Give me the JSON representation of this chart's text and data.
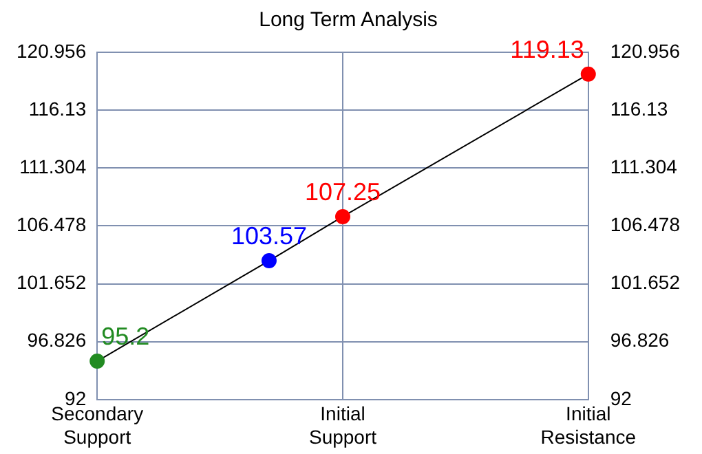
{
  "chart_data": {
    "type": "line",
    "title": "Long Term Analysis",
    "categories": [
      "Secondary Support",
      null,
      null,
      null,
      null,
      null,
      null,
      null,
      null,
      null,
      "Initial Support",
      null,
      null,
      null,
      null,
      null,
      null,
      null,
      null,
      null,
      "Initial Resistance"
    ],
    "ylim": [
      92,
      120.956
    ],
    "yticks": [
      92,
      96.826,
      101.652,
      106.478,
      111.304,
      116.13,
      120.956
    ],
    "y2lim": [
      92,
      120.956
    ],
    "y2ticks": [
      92,
      96.826,
      101.652,
      106.478,
      111.304,
      116.13,
      120.956
    ],
    "series": [
      {
        "color": "#000000",
        "colors": [
          "#228b22",
          null,
          null,
          null,
          null,
          null,
          null,
          "#0000ff",
          null,
          null,
          "#ff0000",
          null,
          null,
          null,
          null,
          null,
          null,
          null,
          null,
          null,
          "#ff0000"
        ],
        "values": [
          95.2,
          null,
          null,
          null,
          null,
          null,
          null,
          103.57,
          null,
          null,
          107.25,
          null,
          null,
          null,
          null,
          null,
          null,
          null,
          null,
          null,
          119.13
        ]
      }
    ],
    "marker": "circle",
    "line_style": "solid",
    "grid": true,
    "data_labels": true
  }
}
